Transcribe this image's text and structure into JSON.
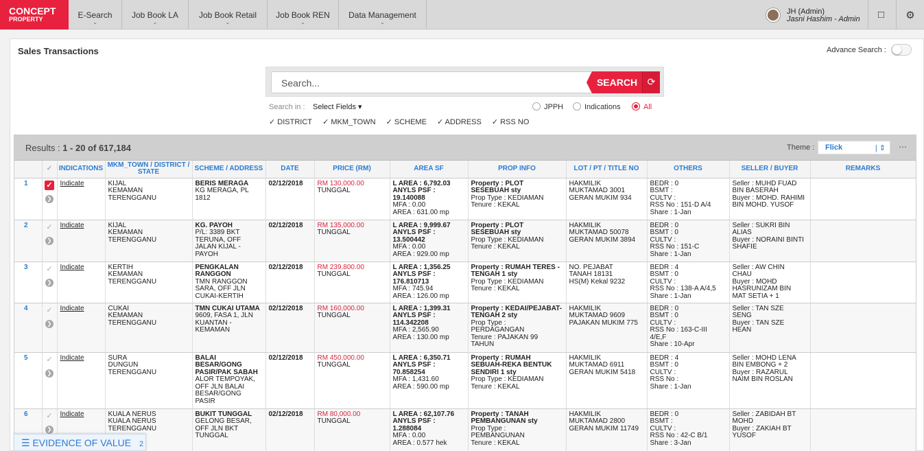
{
  "brand": {
    "line1": "CONCEPT",
    "line2": "PROPERTY",
    "color": "#e8213e"
  },
  "nav": [
    {
      "label": "E-Search"
    },
    {
      "label": "Job Book LA"
    },
    {
      "label": "Job Book Retail"
    },
    {
      "label": "Job Book REN"
    },
    {
      "label": "Data Management"
    }
  ],
  "user": {
    "name": "JH (Admin)",
    "sub": "Jasni Hashim - Admin"
  },
  "icons": {
    "notes": "note-icon",
    "settings": "gear-icon"
  },
  "page": {
    "title": "Sales Transactions",
    "advanced_label": "Advance Search :"
  },
  "search": {
    "placeholder": "Search...",
    "button": "SEARCH",
    "search_in_label": "Search in :",
    "select_fields": "Select Fields ▾",
    "options": [
      "JPPH",
      "Indications",
      "All"
    ],
    "selected": "All",
    "fields": [
      "✓ DISTRICT",
      "✓ MKM_TOWN",
      "✓ SCHEME",
      "✓ ADDRESS",
      "✓ RSS NO"
    ]
  },
  "results": {
    "label": "Results :",
    "range": "1 - 20 of 617,184",
    "theme_label": "Theme :",
    "theme": "Flick"
  },
  "columns": [
    "",
    "✓",
    "INDICATIONS",
    "MKM_TOWN / DISTRICT / STATE",
    "SCHEME / ADDRESS",
    "DATE",
    "PRICE (RM)",
    "AREA SF",
    "PROP INFO",
    "LOT / PT / TITLE NO",
    "OTHERS",
    "SELLER / BUYER",
    "REMARKS"
  ],
  "rows": [
    {
      "num": "1",
      "checked": true,
      "indicate": "Indicate",
      "town": [
        "KIJAL",
        "KEMAMAN",
        "TERENGGANU"
      ],
      "scheme": "BERIS MERAGA",
      "address": [
        "KG MERAGA, PL",
        "1812"
      ],
      "date": "02/12/2018",
      "price": "RM 130,000.00",
      "tenure_type": "TUNGGAL",
      "area": [
        "L AREA : 6,792.03",
        "ANYLS PSF :",
        "19.140088"
      ],
      "area2": [
        "MFA : 0.00",
        "AREA : 631.00 mp"
      ],
      "prop": [
        "Property : PLOT",
        "SESEBUAH sty"
      ],
      "prop2": [
        "Prop Type : KEDIAMAN",
        "Tenure : KEKAL"
      ],
      "lot": [
        "HAKMILIK",
        "MUKTAMAD 3001",
        "GERAN MUKIM 934"
      ],
      "others": [
        "BEDR : 0",
        "BSMT :",
        "CULTV :",
        "RSS No : 151-D A/4",
        "Share : 1-Jan"
      ],
      "party": [
        "Seller : MUHD FUAD",
        "BIN BASERAH",
        "Buyer : MOHD. RAHIMI",
        "BIN MOHD. YUSOF"
      ]
    },
    {
      "num": "2",
      "checked": false,
      "indicate": "Indicate",
      "town": [
        "KIJAL",
        "KEMAMAN",
        "TERENGGANU"
      ],
      "scheme": "KG. PAYOH",
      "address": [
        "P/L: 3389 BKT",
        "TERUNA, OFF",
        "JALAN KIJAL -",
        "PAYOH"
      ],
      "date": "02/12/2018",
      "price": "RM 135,000.00",
      "tenure_type": "TUNGGAL",
      "area": [
        "L AREA : 9,999.67",
        "ANYLS PSF :",
        "13.500442"
      ],
      "area2": [
        "MFA : 0.00",
        "AREA : 929.00 mp"
      ],
      "prop": [
        "Property : PLOT",
        "SESEBUAH sty"
      ],
      "prop2": [
        "Prop Type : KEDIAMAN",
        "Tenure : KEKAL"
      ],
      "lot": [
        "HAKMILIK",
        "MUKTAMAD 50078",
        "GERAN MUKIM 3894"
      ],
      "others": [
        "BEDR : 0",
        "BSMT : 0",
        "CULTV :",
        "RSS No : 151-C",
        "Share : 1-Jan"
      ],
      "party": [
        "Seller : SUKRI BIN",
        "ALIAS",
        "Buyer : NORAINI BINTI",
        "SHAFIE"
      ]
    },
    {
      "num": "3",
      "checked": false,
      "indicate": "Indicate",
      "town": [
        "KERTIH",
        "KEMAMAN",
        "TERENGGANU"
      ],
      "scheme": "PENGKALAN RANGGON",
      "address": [
        "TMN RANGGON",
        "SARA, OFF JLN",
        "CUKAI-KERTIH"
      ],
      "date": "02/12/2018",
      "price": "RM 239,800.00",
      "tenure_type": "TUNGGAL",
      "area": [
        "L AREA : 1,356.25",
        "ANYLS PSF :",
        "176.810713"
      ],
      "area2": [
        "MFA : 745.94",
        "AREA : 126.00 mp"
      ],
      "prop": [
        "Property : RUMAH TERES -",
        "TENGAH 1 sty"
      ],
      "prop2": [
        "Prop Type : KEDIAMAN",
        "Tenure : KEKAL"
      ],
      "lot": [
        "NO. PEJABAT",
        "TANAH 18131",
        "HS(M) Kekal 9232"
      ],
      "others": [
        "BEDR : 4",
        "BSMT : 0",
        "CULTV :",
        "RSS No : 138-A A/4,5",
        "Share : 1-Jan"
      ],
      "party": [
        "Seller : AW CHIN",
        "CHAU",
        "Buyer : MOHD",
        "HASRUNIZAM BIN",
        "MAT SETIA + 1"
      ]
    },
    {
      "num": "4",
      "checked": false,
      "indicate": "Indicate",
      "town": [
        "CUKAI",
        "KEMAMAN",
        "TERENGGANU"
      ],
      "scheme": "TMN CUKAI UTAMA",
      "address": [
        "9609, FASA 1, JLN",
        "KUANTAN -",
        "KEMAMAN"
      ],
      "date": "02/12/2018",
      "price": "RM 160,000.00",
      "tenure_type": "TUNGGAL",
      "area": [
        "L AREA : 1,399.31",
        "ANYLS PSF :",
        "114.342208"
      ],
      "area2": [
        "MFA : 2,565.90",
        "AREA : 130.00 mp"
      ],
      "prop": [
        "Property : KEDAI/PEJABAT-",
        "TENGAH 2 sty"
      ],
      "prop2": [
        "Prop Type :",
        "PERDAGANGAN",
        "Tenure : PAJAKAN 99",
        "TAHUN"
      ],
      "lot": [
        "HAKMILIK",
        "MUKTAMAD 9609",
        "PAJAKAN MUKIM 775"
      ],
      "others": [
        "BEDR : 0",
        "BSMT : 0",
        "CULTV :",
        "RSS No : 163-C-III",
        "4/E,F",
        "Share : 10-Apr"
      ],
      "party": [
        "Seller : TAN SZE",
        "SENG",
        "Buyer : TAN SZE",
        "HEAN"
      ]
    },
    {
      "num": "5",
      "checked": false,
      "indicate": "Indicate",
      "town": [
        "SURA",
        "DUNGUN",
        "TERENGGANU"
      ],
      "scheme": "BALAI BESAR/GONG PASIR/PAK SABAH",
      "address": [
        "ALOR TEMPOYAK,",
        "OFF JLN BALAI",
        "BESAR/GONG",
        "PASIR"
      ],
      "date": "02/12/2018",
      "price": "RM 450,000.00",
      "tenure_type": "TUNGGAL",
      "area": [
        "L AREA : 6,350.71",
        "ANYLS PSF :",
        "70.858254"
      ],
      "area2": [
        "MFA : 1,431.60",
        "AREA : 590.00 mp"
      ],
      "prop": [
        "Property : RUMAH",
        "SEBUAH-REKA BENTUK",
        "SENDIRI 1 sty"
      ],
      "prop2": [
        "Prop Type : KEDIAMAN",
        "Tenure : KEKAL"
      ],
      "lot": [
        "HAKMILIK",
        "MUKTAMAD 6911",
        "GERAN MUKIM 5418"
      ],
      "others": [
        "BEDR : 4",
        "BSMT : 0",
        "CULTV :",
        "RSS No :",
        "Share : 1-Jan"
      ],
      "party": [
        "Seller : MOHD LENA",
        "BIN EMBONG + 2",
        "Buyer : RAZARUL",
        "NAIM BIN ROSLAN"
      ]
    },
    {
      "num": "6",
      "checked": false,
      "indicate": "Indicate",
      "town": [
        "KUALA NERUS",
        "KUALA NERUS",
        "TERENGGANU"
      ],
      "scheme": "BUKIT TUNGGAL",
      "address": [
        "GELONG BESAR,",
        "OFF JLN BKT",
        "TUNGGAL"
      ],
      "date": "02/12/2018",
      "price": "RM 80,000.00",
      "tenure_type": "TUNGGAL",
      "area": [
        "L AREA : 62,107.76",
        "ANYLS PSF :",
        "1.288084"
      ],
      "area2": [
        "MFA : 0.00",
        "AREA : 0.577 hek"
      ],
      "prop": [
        "Property : TANAH",
        "PEMBANGUNAN sty"
      ],
      "prop2": [
        "Prop Type :",
        "PEMBANGUNAN",
        "Tenure : KEKAL"
      ],
      "lot": [
        "HAKMILIK",
        "MUKTAMAD 2800",
        "GERAN MUKIM 11749"
      ],
      "others": [
        "BEDR : 0",
        "BSMT :",
        "CULTV :",
        "RSS No : 42-C B/1",
        "Share : 3-Jan"
      ],
      "party": [
        "Seller : ZABIDAH BT",
        "MOHD",
        "Buyer : ZAKIAH BT",
        "YUSOF"
      ]
    }
  ],
  "evidence": {
    "label": "EVIDENCE OF VALUE",
    "count": "2"
  }
}
